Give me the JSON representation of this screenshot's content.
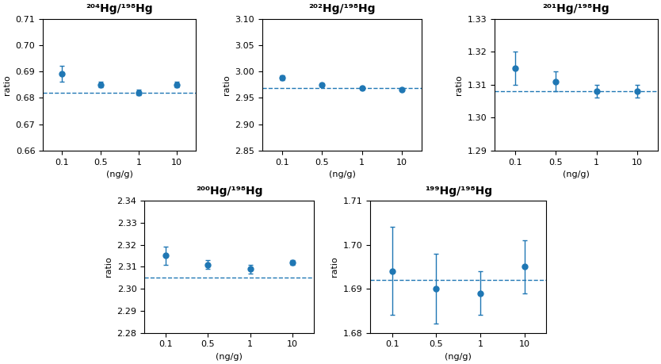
{
  "chart_data": [
    {
      "type": "scatter",
      "title": "²⁰⁴Hg/¹⁹⁸Hg",
      "xlabel": "(ng/g)",
      "ylabel": "ratio",
      "categories": [
        "0.1",
        "0.5",
        "1",
        "10"
      ],
      "values": [
        0.689,
        0.685,
        0.682,
        0.685
      ],
      "errors": [
        0.003,
        0.001,
        0.001,
        0.001
      ],
      "reference_y": 0.682,
      "marker": "o",
      "grid": false,
      "ylim": [
        0.66,
        0.71
      ],
      "yticks": [
        0.66,
        0.67,
        0.68,
        0.69,
        {
          "value": 0.7,
          "label": "0.70"
        },
        0.71
      ]
    },
    {
      "type": "scatter",
      "title": "²⁰²Hg/¹⁹⁸Hg",
      "xlabel": "(ng/g)",
      "ylabel": "ratio",
      "categories": [
        "0.1",
        "0.5",
        "1",
        "10"
      ],
      "values": [
        2.988,
        2.975,
        2.968,
        2.966
      ],
      "errors": [
        0.005,
        0.003,
        0.002,
        0.001
      ],
      "reference_y": 2.968,
      "marker": "o",
      "grid": false,
      "ylim": [
        2.85,
        3.1
      ],
      "yticks": [
        2.85,
        {
          "value": 2.9,
          "label": "2.90"
        },
        2.95,
        {
          "value": 3.0,
          "label": "3.00"
        },
        3.05,
        {
          "value": 3.1,
          "label": "3.10"
        }
      ]
    },
    {
      "type": "scatter",
      "title": "²⁰¹Hg/¹⁹⁸Hg",
      "xlabel": "(ng/g)",
      "ylabel": "ratio",
      "categories": [
        "0.1",
        "0.5",
        "1",
        "10"
      ],
      "values": [
        1.315,
        1.311,
        1.308,
        1.308
      ],
      "errors": [
        0.005,
        0.003,
        0.002,
        0.002
      ],
      "reference_y": 1.308,
      "marker": "o",
      "grid": false,
      "ylim": [
        1.29,
        1.33
      ],
      "yticks": [
        1.29,
        {
          "value": 1.3,
          "label": "1.30"
        },
        1.31,
        1.32,
        1.33
      ]
    },
    {
      "type": "scatter",
      "title": "²⁰⁰Hg/¹⁹⁸Hg",
      "xlabel": "(ng/g)",
      "ylabel": "ratio",
      "categories": [
        "0.1",
        "0.5",
        "1",
        "10"
      ],
      "values": [
        2.315,
        2.311,
        2.309,
        2.312
      ],
      "errors": [
        0.004,
        0.002,
        0.002,
        0.001
      ],
      "reference_y": 2.305,
      "marker": "o",
      "grid": false,
      "ylim": [
        2.28,
        2.34
      ],
      "yticks": [
        2.28,
        2.29,
        {
          "value": 2.3,
          "label": "2.30"
        },
        2.31,
        2.32,
        2.33,
        2.34
      ]
    },
    {
      "type": "scatter",
      "title": "¹⁹⁹Hg/¹⁹⁸Hg",
      "xlabel": "(ng/g)",
      "ylabel": "ratio",
      "categories": [
        "0.1",
        "0.5",
        "1",
        "10"
      ],
      "values": [
        1.694,
        1.69,
        1.689,
        1.695
      ],
      "errors": [
        0.01,
        0.008,
        0.005,
        0.006
      ],
      "reference_y": 1.692,
      "marker": "o",
      "grid": false,
      "ylim": [
        1.68,
        1.71
      ],
      "yticks": [
        1.68,
        1.69,
        {
          "value": 1.7,
          "label": "1.70"
        },
        1.71
      ]
    }
  ]
}
